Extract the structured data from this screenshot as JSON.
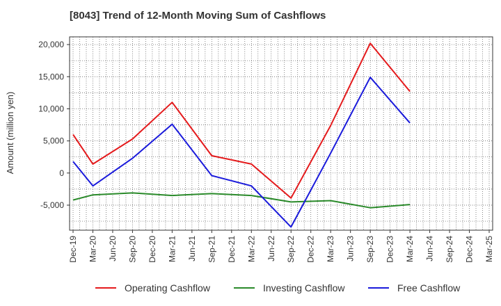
{
  "chart_data": {
    "type": "line",
    "title": "[8043]  Trend of 12-Month Moving Sum of Cashflows",
    "xlabel": "",
    "ylabel": "Amount (million yen)",
    "ylim": [
      -8900,
      21200
    ],
    "yticks": [
      -5000,
      0,
      5000,
      10000,
      15000,
      20000
    ],
    "ytick_labels": [
      "-5,000",
      "0",
      "5,000",
      "10,000",
      "15,000",
      "20,000"
    ],
    "categories": [
      "Dec-19",
      "Mar-20",
      "Jun-20",
      "Sep-20",
      "Dec-20",
      "Mar-21",
      "Jun-21",
      "Sep-21",
      "Dec-21",
      "Mar-22",
      "Jun-22",
      "Sep-22",
      "Dec-22",
      "Mar-23",
      "Jun-23",
      "Sep-23",
      "Dec-23",
      "Mar-24",
      "Jun-24",
      "Sep-24",
      "Dec-24",
      "Mar-25"
    ],
    "grid": true,
    "legend_position": "bottom",
    "series": [
      {
        "name": "Operating Cashflow",
        "color": "#e41a1c",
        "values": [
          6000,
          1400,
          null,
          5300,
          null,
          11000,
          null,
          2700,
          null,
          1400,
          null,
          -3900,
          null,
          7400,
          null,
          20200,
          null,
          12700,
          null,
          null,
          null,
          null
        ]
      },
      {
        "name": "Investing Cashflow",
        "color": "#2a8a2a",
        "values": [
          -4200,
          -3400,
          null,
          -3100,
          null,
          -3500,
          null,
          -3200,
          null,
          -3500,
          null,
          -4500,
          null,
          -4300,
          null,
          -5400,
          null,
          -4900,
          null,
          null,
          null,
          null
        ]
      },
      {
        "name": "Free Cashflow",
        "color": "#1a1adb",
        "values": [
          1800,
          -2000,
          null,
          2300,
          null,
          7600,
          null,
          -400,
          null,
          -2000,
          null,
          -8400,
          null,
          3100,
          null,
          14900,
          null,
          7800,
          null,
          null,
          null,
          null
        ]
      }
    ]
  }
}
